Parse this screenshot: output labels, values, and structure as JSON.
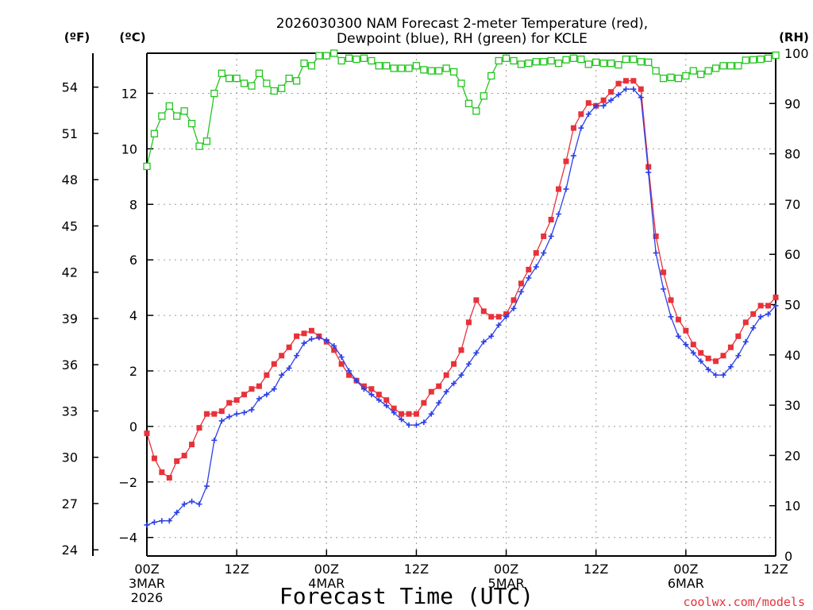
{
  "chart_data": {
    "type": "line",
    "title_line1": "2026030300 NAM Forecast 2-meter Temperature (red),",
    "title_line2": "Dewpoint (blue), RH (green) for KCLE",
    "xlabel": "Forecast Time (UTC)",
    "left_outer_unit": "(ºF)",
    "left_inner_unit": "(ºC)",
    "right_unit": "(RH)",
    "credit": "coolwx.com/models",
    "x_range_hours": [
      0,
      84
    ],
    "y_celsius_range": [
      -4.667,
      13.444
    ],
    "rh_range": [
      0,
      100
    ],
    "x_ticks": [
      {
        "h": 0,
        "label": "00Z",
        "sub1": "3MAR",
        "sub2": "2026"
      },
      {
        "h": 12,
        "label": "12Z",
        "sub1": "",
        "sub2": ""
      },
      {
        "h": 24,
        "label": "00Z",
        "sub1": "4MAR",
        "sub2": ""
      },
      {
        "h": 36,
        "label": "12Z",
        "sub1": "",
        "sub2": ""
      },
      {
        "h": 48,
        "label": "00Z",
        "sub1": "5MAR",
        "sub2": ""
      },
      {
        "h": 60,
        "label": "12Z",
        "sub1": "",
        "sub2": ""
      },
      {
        "h": 72,
        "label": "00Z",
        "sub1": "6MAR",
        "sub2": ""
      },
      {
        "h": 84,
        "label": "12Z",
        "sub1": "",
        "sub2": ""
      }
    ],
    "celsius_ticks": [
      -4,
      -2,
      0,
      2,
      4,
      6,
      8,
      10,
      12
    ],
    "fahrenheit_ticks": [
      24,
      27,
      30,
      33,
      36,
      39,
      42,
      45,
      48,
      51,
      54
    ],
    "rh_ticks": [
      0,
      10,
      20,
      30,
      40,
      50,
      60,
      70,
      80,
      90,
      100
    ],
    "series": [
      {
        "name": "Temperature",
        "unit": "C",
        "color": "#e8313a",
        "marker": "filled-square",
        "x": [
          0,
          1,
          2,
          3,
          4,
          5,
          6,
          7,
          8,
          9,
          10,
          11,
          12,
          13,
          14,
          15,
          16,
          17,
          18,
          19,
          20,
          21,
          22,
          23,
          24,
          25,
          26,
          27,
          28,
          29,
          30,
          31,
          32,
          33,
          34,
          35,
          36,
          37,
          38,
          39,
          40,
          41,
          42,
          43,
          44,
          45,
          46,
          47,
          48,
          49,
          50,
          51,
          52,
          53,
          54,
          55,
          56,
          57,
          58,
          59,
          60,
          61,
          62,
          63,
          64,
          65,
          66,
          67,
          68,
          69,
          70,
          71,
          72,
          73,
          74,
          75,
          76,
          77,
          78,
          79,
          80,
          81,
          82,
          83,
          84
        ],
        "values": [
          -0.25,
          -1.15,
          -1.65,
          -1.85,
          -1.25,
          -1.05,
          -0.65,
          -0.05,
          0.45,
          0.45,
          0.55,
          0.85,
          0.95,
          1.15,
          1.35,
          1.45,
          1.85,
          2.25,
          2.55,
          2.85,
          3.25,
          3.35,
          3.45,
          3.25,
          3.05,
          2.75,
          2.25,
          1.85,
          1.65,
          1.45,
          1.35,
          1.15,
          0.95,
          0.65,
          0.45,
          0.45,
          0.45,
          0.85,
          1.25,
          1.45,
          1.85,
          2.25,
          2.75,
          3.75,
          4.55,
          4.15,
          3.95,
          3.95,
          4.05,
          4.55,
          5.15,
          5.65,
          6.25,
          6.85,
          7.45,
          8.55,
          9.55,
          10.75,
          11.25,
          11.65,
          11.55,
          11.75,
          12.05,
          12.35,
          12.45,
          12.45,
          12.15,
          9.35,
          6.85,
          5.55,
          4.55,
          3.85,
          3.45,
          2.95,
          2.65,
          2.45,
          2.35,
          2.55,
          2.85,
          3.25,
          3.75,
          4.05,
          4.35,
          4.35,
          4.65
        ]
      },
      {
        "name": "Dewpoint",
        "unit": "C",
        "color": "#2b3fe8",
        "marker": "plus",
        "x": [
          0,
          1,
          2,
          3,
          4,
          5,
          6,
          7,
          8,
          9,
          10,
          11,
          12,
          13,
          14,
          15,
          16,
          17,
          18,
          19,
          20,
          21,
          22,
          23,
          24,
          25,
          26,
          27,
          28,
          29,
          30,
          31,
          32,
          33,
          34,
          35,
          36,
          37,
          38,
          39,
          40,
          41,
          42,
          43,
          44,
          45,
          46,
          47,
          48,
          49,
          50,
          51,
          52,
          53,
          54,
          55,
          56,
          57,
          58,
          59,
          60,
          61,
          62,
          63,
          64,
          65,
          66,
          67,
          68,
          69,
          70,
          71,
          72,
          73,
          74,
          75,
          76,
          77,
          78,
          79,
          80,
          81,
          82,
          83,
          84
        ],
        "values": [
          -3.55,
          -3.45,
          -3.4,
          -3.4,
          -3.1,
          -2.8,
          -2.7,
          -2.8,
          -2.15,
          -0.5,
          0.2,
          0.35,
          0.45,
          0.5,
          0.6,
          1.0,
          1.15,
          1.35,
          1.85,
          2.1,
          2.55,
          3.0,
          3.15,
          3.2,
          3.1,
          2.9,
          2.5,
          2.0,
          1.65,
          1.35,
          1.15,
          0.95,
          0.75,
          0.5,
          0.25,
          0.05,
          0.05,
          0.15,
          0.45,
          0.85,
          1.25,
          1.55,
          1.85,
          2.25,
          2.65,
          3.05,
          3.25,
          3.65,
          3.95,
          4.25,
          4.85,
          5.35,
          5.75,
          6.25,
          6.85,
          7.65,
          8.55,
          9.75,
          10.75,
          11.25,
          11.55,
          11.55,
          11.75,
          11.95,
          12.15,
          12.15,
          11.85,
          9.15,
          6.25,
          4.95,
          3.95,
          3.25,
          2.95,
          2.65,
          2.35,
          2.05,
          1.85,
          1.85,
          2.15,
          2.55,
          3.05,
          3.55,
          3.95,
          4.05,
          4.35
        ]
      },
      {
        "name": "RH",
        "unit": "%",
        "color": "#22c51e",
        "marker": "open-square",
        "x": [
          0,
          1,
          2,
          3,
          4,
          5,
          6,
          7,
          8,
          9,
          10,
          11,
          12,
          13,
          14,
          15,
          16,
          17,
          18,
          19,
          20,
          21,
          22,
          23,
          24,
          25,
          26,
          27,
          28,
          29,
          30,
          31,
          32,
          33,
          34,
          35,
          36,
          37,
          38,
          39,
          40,
          41,
          42,
          43,
          44,
          45,
          46,
          47,
          48,
          49,
          50,
          51,
          52,
          53,
          54,
          55,
          56,
          57,
          58,
          59,
          60,
          61,
          62,
          63,
          64,
          65,
          66,
          67,
          68,
          69,
          70,
          71,
          72,
          73,
          74,
          75,
          76,
          77,
          78,
          79,
          80,
          81,
          82,
          83,
          84
        ],
        "values": [
          77.5,
          84,
          87.5,
          89.5,
          87.5,
          88.5,
          86,
          81.5,
          82.5,
          92,
          96,
          95,
          95,
          94,
          93.5,
          96,
          94,
          92.5,
          93,
          95,
          94.5,
          98,
          97.5,
          99.5,
          99.5,
          100,
          98.5,
          99,
          98.8,
          99,
          98.5,
          97.5,
          97.5,
          97,
          97,
          97,
          97.5,
          96.7,
          96.5,
          96.5,
          97,
          96.3,
          94,
          90,
          88.5,
          91.5,
          95.5,
          98.5,
          99,
          98.5,
          97.8,
          98,
          98.3,
          98.3,
          98.5,
          98,
          98.7,
          99,
          98.8,
          97.8,
          98.2,
          98,
          98,
          97.7,
          98.8,
          98.8,
          98.3,
          98.2,
          96.5,
          95,
          95.2,
          95,
          95.5,
          96.5,
          95.8,
          96.5,
          97,
          97.5,
          97.5,
          97.5,
          98.6,
          98.7,
          98.8,
          99,
          99.6
        ]
      }
    ]
  }
}
